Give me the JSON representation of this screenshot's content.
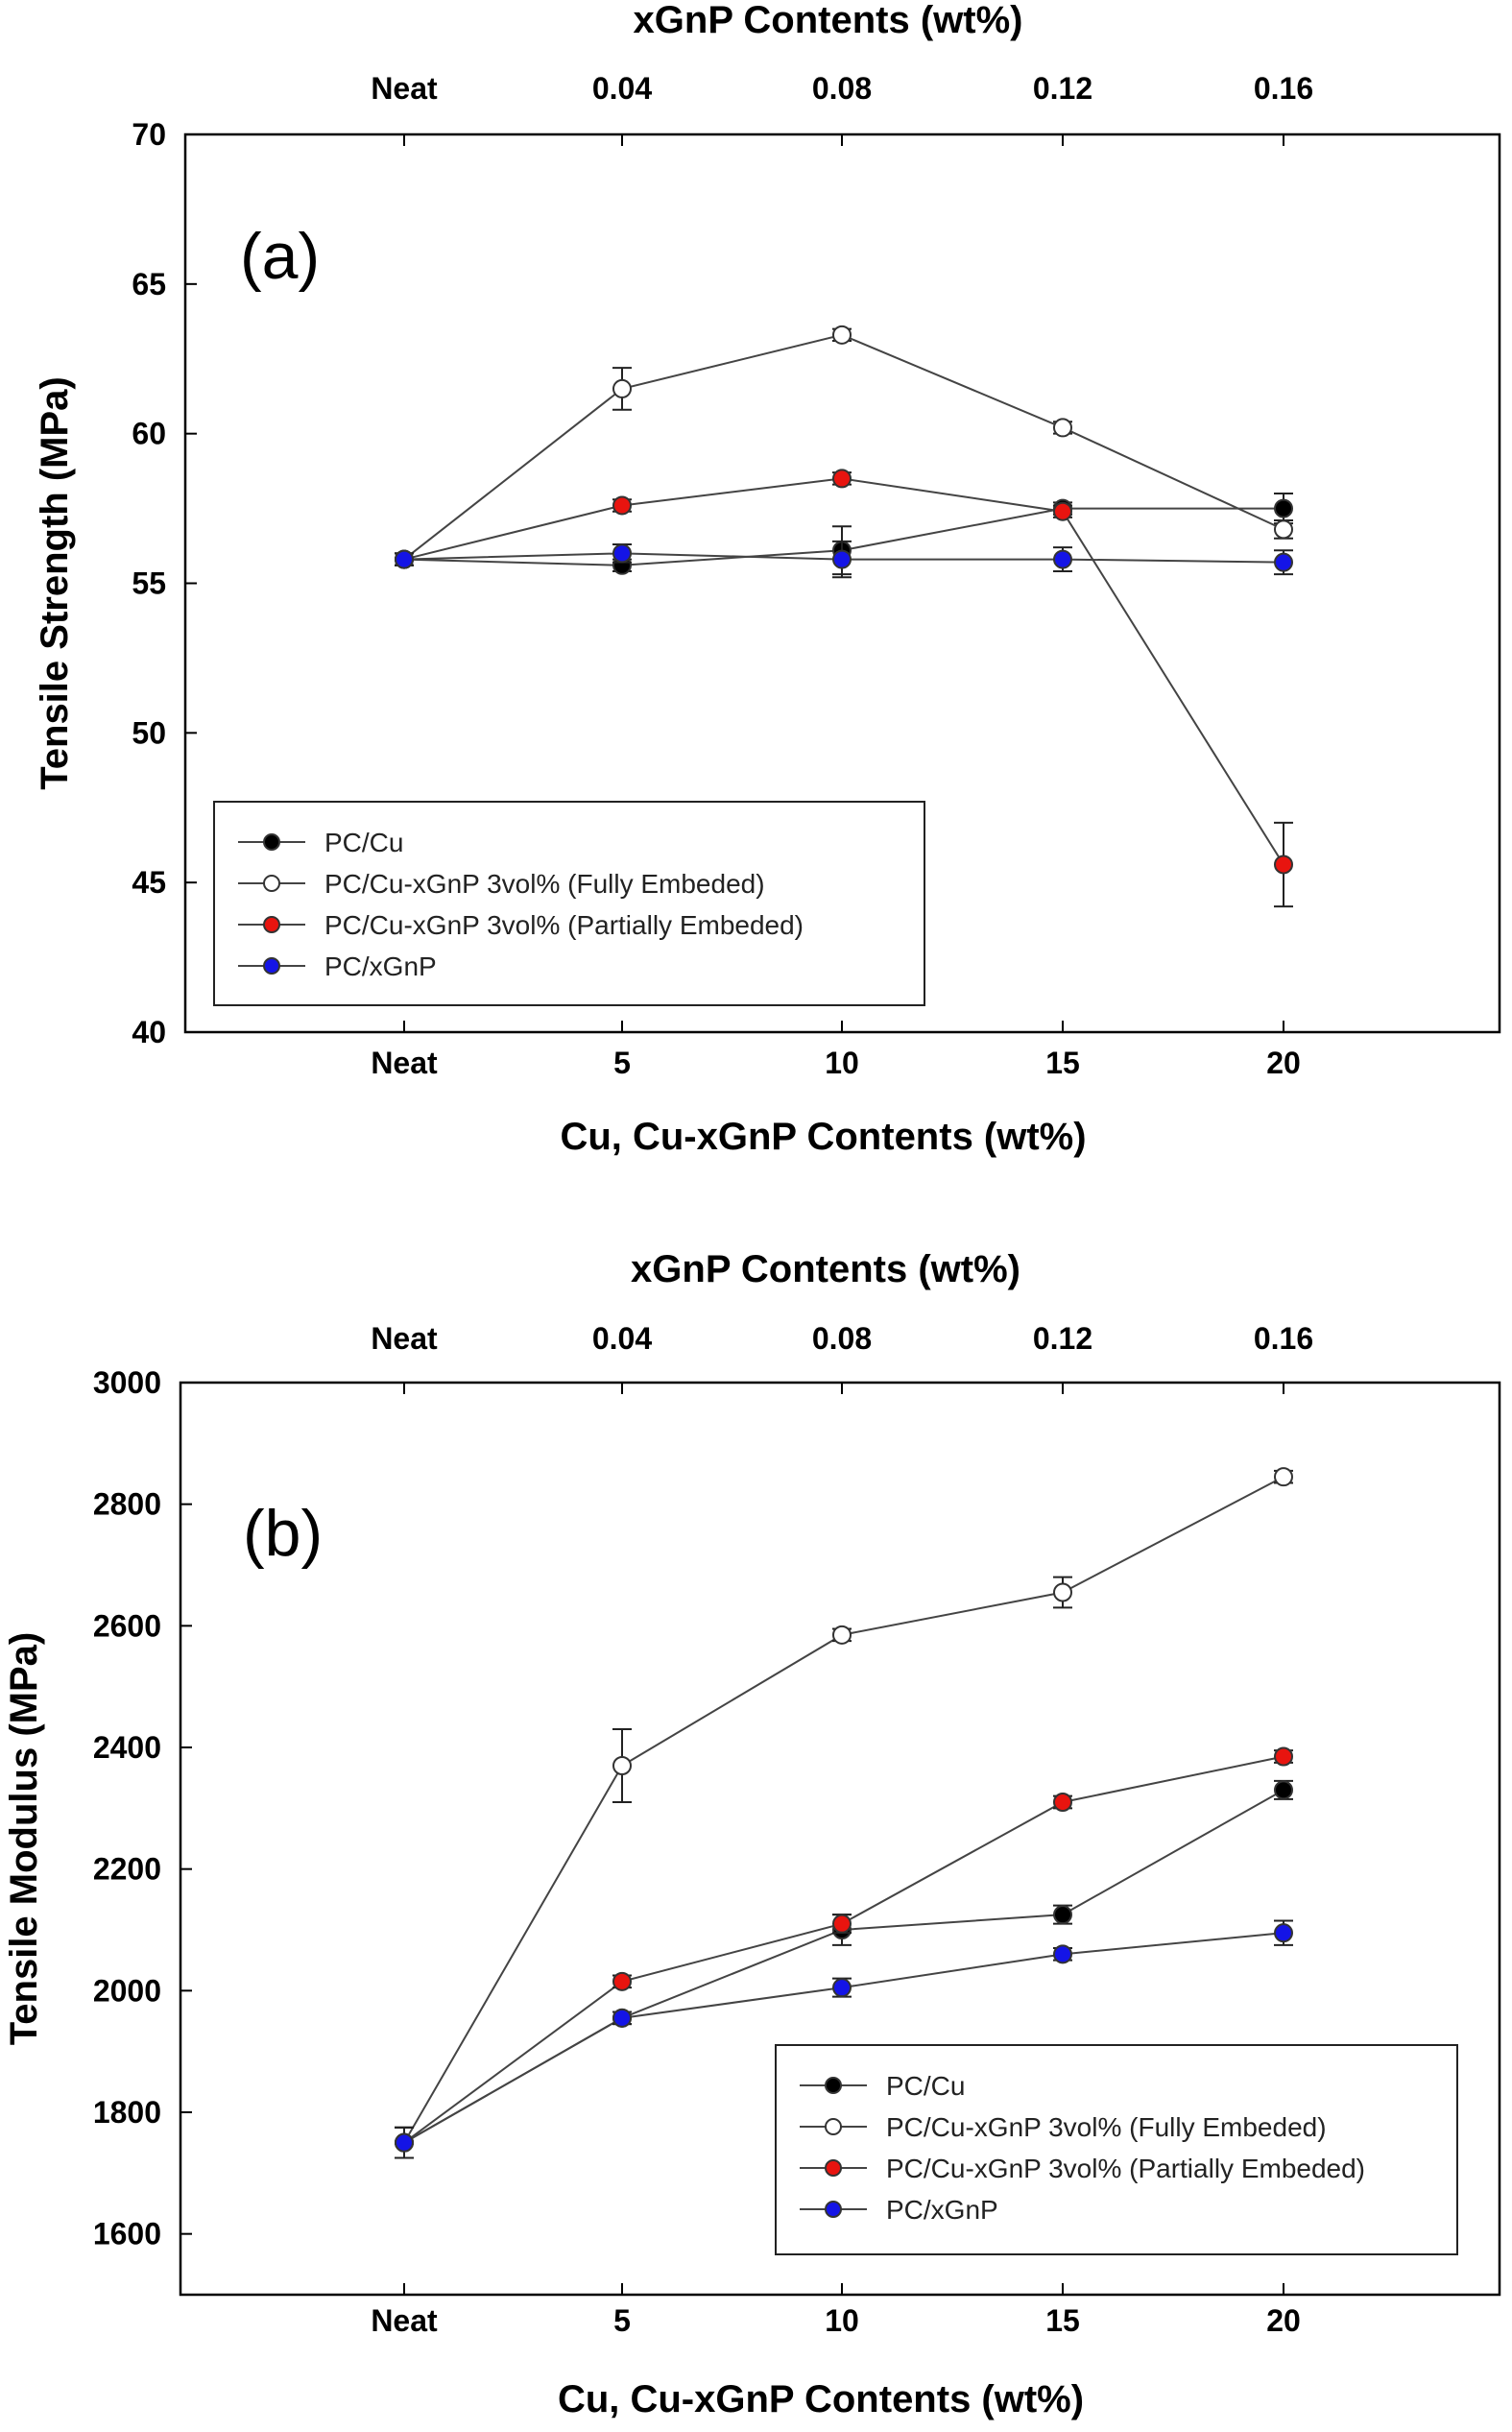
{
  "colors": {
    "PC/Cu": "#000000",
    "PC/Cu-xGnP 3vol% (Fully Embeded)": "#ffffff",
    "PC/Cu-xGnP 3vol% (Partially Embeded)": "#e8140f",
    "PC/xGnP": "#1414e6",
    "axis": "#000000",
    "line": "#444444"
  },
  "chart_data": [
    {
      "type": "line",
      "panel_label": "(a)",
      "xlabel": "Cu, Cu-xGnP Contents (wt%)",
      "top_xlabel": "xGnP Contents (wt%)",
      "ylabel": "Tensile Strength (MPa)",
      "categories": [
        "Neat",
        "5",
        "10",
        "15",
        "20"
      ],
      "top_categories": [
        "Neat",
        "0.04",
        "0.08",
        "0.12",
        "0.16"
      ],
      "ylim": [
        40,
        70
      ],
      "yticks": [
        40,
        45,
        50,
        55,
        60,
        65,
        70
      ],
      "legend_position": "bottom-left",
      "series": [
        {
          "name": "PC/Cu",
          "values": [
            55.8,
            55.6,
            56.1,
            57.5,
            57.5
          ],
          "errors": [
            0.2,
            0.2,
            0.8,
            0.2,
            0.5
          ]
        },
        {
          "name": "PC/Cu-xGnP 3vol% (Fully Embeded)",
          "values": [
            55.8,
            61.5,
            63.3,
            60.2,
            56.8
          ],
          "errors": [
            0.2,
            0.7,
            0.2,
            0.2,
            0.3
          ]
        },
        {
          "name": "PC/Cu-xGnP 3vol% (Partially Embeded)",
          "values": [
            55.8,
            57.6,
            58.5,
            57.4,
            45.6
          ],
          "errors": [
            0.2,
            0.2,
            0.2,
            0.2,
            1.4
          ]
        },
        {
          "name": "PC/xGnP",
          "values": [
            55.8,
            56.0,
            55.8,
            55.8,
            55.7
          ],
          "errors": [
            0.2,
            0.3,
            0.6,
            0.4,
            0.4
          ]
        }
      ]
    },
    {
      "type": "line",
      "panel_label": "(b)",
      "xlabel": "Cu, Cu-xGnP Contents (wt%)",
      "top_xlabel": "xGnP Contents (wt%)",
      "ylabel": "Tensile Modulus (MPa)",
      "categories": [
        "Neat",
        "5",
        "10",
        "15",
        "20"
      ],
      "top_categories": [
        "Neat",
        "0.04",
        "0.08",
        "0.12",
        "0.16"
      ],
      "ylim": [
        1500,
        3000
      ],
      "yticks": [
        1600,
        1800,
        2000,
        2200,
        2400,
        2600,
        2800,
        3000
      ],
      "legend_position": "bottom-right",
      "series": [
        {
          "name": "PC/Cu",
          "values": [
            1750,
            1955,
            2100,
            2125,
            2330
          ],
          "errors": [
            25,
            10,
            25,
            15,
            15
          ]
        },
        {
          "name": "PC/Cu-xGnP 3vol% (Fully Embeded)",
          "values": [
            1750,
            2370,
            2585,
            2655,
            2845
          ],
          "errors": [
            25,
            60,
            10,
            25,
            10
          ]
        },
        {
          "name": "PC/Cu-xGnP 3vol% (Partially Embeded)",
          "values": [
            1750,
            2015,
            2110,
            2310,
            2385
          ],
          "errors": [
            25,
            10,
            15,
            10,
            10
          ]
        },
        {
          "name": "PC/xGnP",
          "values": [
            1750,
            1955,
            2005,
            2060,
            2095
          ],
          "errors": [
            25,
            10,
            15,
            10,
            20
          ]
        }
      ]
    }
  ]
}
